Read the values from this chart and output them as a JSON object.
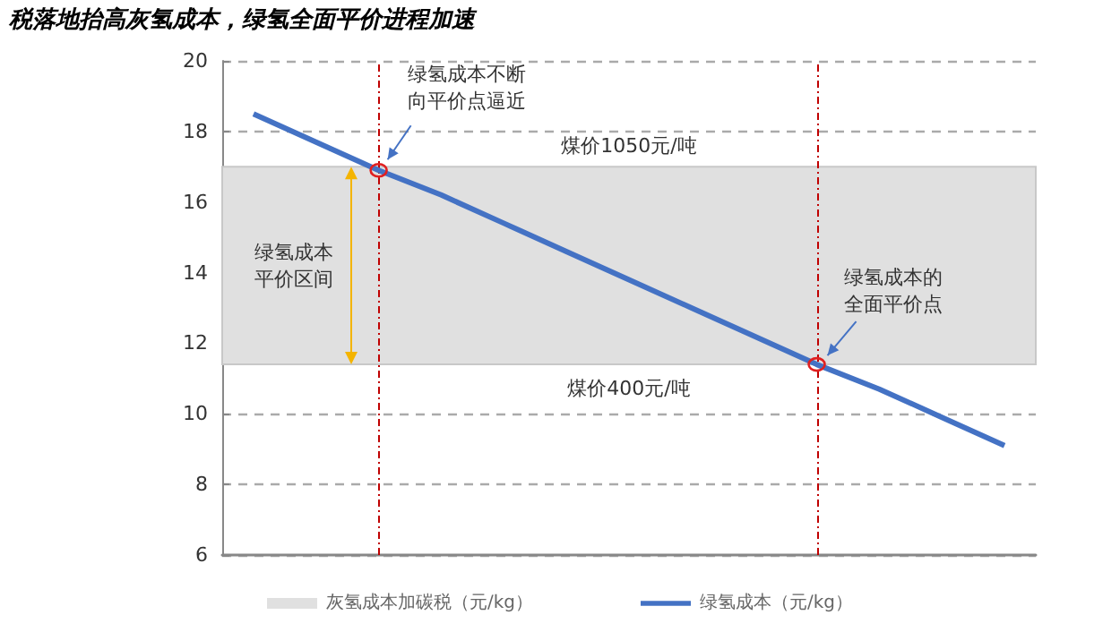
{
  "chart_data": {
    "type": "line",
    "title": "税落地抬高灰氢成本，绿氢全面平价进程加速",
    "categories": [
      null,
      null,
      null,
      null,
      null,
      null,
      null,
      null,
      null,
      null,
      null,
      null,
      null
    ],
    "series": [
      {
        "name": "绿氢成本（元/kg）",
        "color": "#4472c4",
        "values": [
          18.5,
          17.7,
          16.9,
          16.2,
          15.4,
          14.6,
          13.8,
          13.0,
          12.2,
          11.4,
          10.7,
          9.9,
          9.1
        ]
      }
    ],
    "ylim": [
      6,
      20
    ],
    "yticks": [
      6,
      8,
      10,
      12,
      14,
      16,
      18,
      20
    ],
    "grid": "y",
    "legend": "bottom",
    "marker": "none",
    "tick_labels": "y",
    "bands": [
      {
        "axis": "y",
        "from": 11.4,
        "to": 17,
        "label": "灰氢成本加碳税（元/kg）",
        "color": "#e0e0e0"
      }
    ],
    "annotations": [
      {
        "text": "绿氢成本不断向平价点逼近",
        "y": 16.9
      },
      "绿氢成本平价区间",
      {
        "text": "绿氢成本的全面平价点",
        "y": 11.4
      },
      {
        "text": "煤价1050元/吨",
        "y": 17
      },
      {
        "text": "煤价400元/吨",
        "y": 11.4
      }
    ]
  }
}
